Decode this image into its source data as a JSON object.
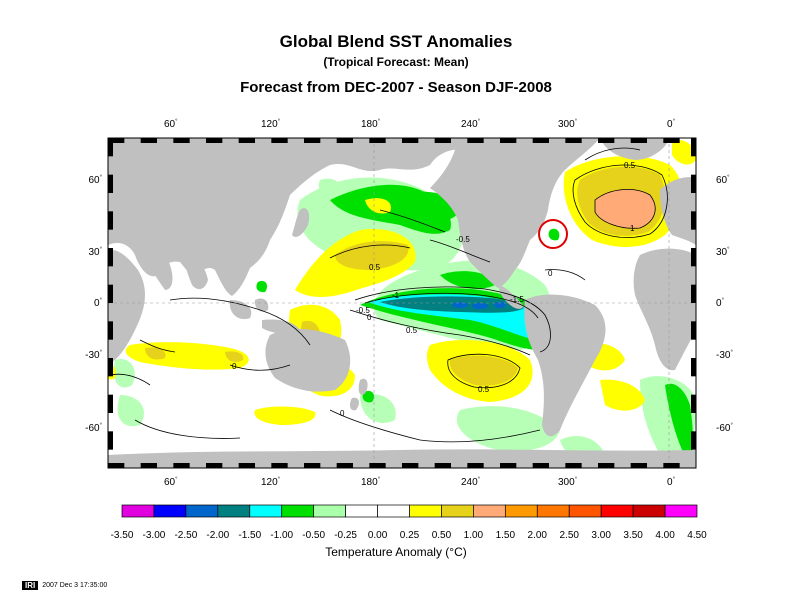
{
  "title": "Global Blend SST Anomalies",
  "subtitle": "(Tropical Forecast: Mean)",
  "forecast_line": "Forecast from DEC-2007 - Season DJF-2008",
  "lon_ticks": [
    "60",
    "120",
    "180",
    "240",
    "300",
    "0"
  ],
  "lat_ticks_left": [
    "60",
    "30",
    "0",
    "-30",
    "-60"
  ],
  "lat_ticks_right": [
    "60",
    "30",
    "0",
    "-30",
    "-60"
  ],
  "contour_labels": [
    "0.5",
    "0.5",
    "-0.5",
    "0",
    "-1",
    "-1.5",
    "0",
    "0.5",
    "0",
    "0.5",
    "1",
    "0",
    "-0.5"
  ],
  "colorbar": {
    "labels": [
      "-3.50",
      "-3.00",
      "-2.50",
      "-2.00",
      "-1.50",
      "-1.00",
      "-0.50",
      "-0.25",
      "0.00",
      "0.25",
      "0.50",
      "1.00",
      "1.50",
      "2.00",
      "2.50",
      "3.00",
      "3.50",
      "4.00",
      "4.50"
    ],
    "colors": [
      "#e000e0",
      "#0000ff",
      "#0066cc",
      "#008080",
      "#00ffff",
      "#00e000",
      "#aaffaa",
      "#ffffff",
      "#ffffff",
      "#ffff00",
      "#e6d21a",
      "#ffaa77",
      "#ff9900",
      "#ff7700",
      "#ff5500",
      "#ff0000",
      "#cc0000",
      "#ff00ff"
    ],
    "title": "Temperature Anomaly (°C)"
  },
  "footer": {
    "logo": "IRI",
    "timestamp": "2007 Dec 3 17:35:00"
  },
  "colors": {
    "land": "#c0c0c0",
    "ocean": "#ffffff",
    "highlight": "#e00000"
  }
}
